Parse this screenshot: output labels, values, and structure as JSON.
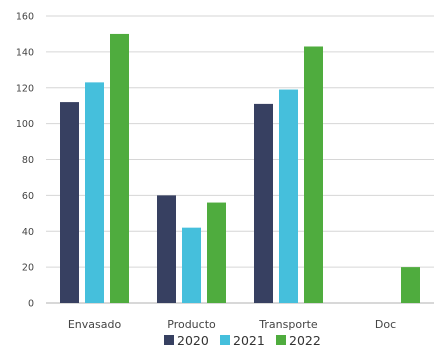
{
  "chart_data": {
    "type": "bar",
    "categories": [
      "Envasado",
      "Producto",
      "Transporte",
      "Doc"
    ],
    "series": [
      {
        "name": "2020",
        "color": "#374061",
        "values": [
          112,
          60,
          111,
          null
        ]
      },
      {
        "name": "2021",
        "color": "#45bfdc",
        "values": [
          123,
          42,
          119,
          null
        ]
      },
      {
        "name": "2022",
        "color": "#4fac3e",
        "values": [
          150,
          56,
          143,
          20
        ]
      }
    ],
    "ylim": [
      0,
      160
    ],
    "yticks": [
      0,
      20,
      40,
      60,
      80,
      100,
      120,
      140,
      160
    ],
    "grid": true,
    "legend": "bottom",
    "title": "",
    "xlabel": "",
    "ylabel": ""
  }
}
